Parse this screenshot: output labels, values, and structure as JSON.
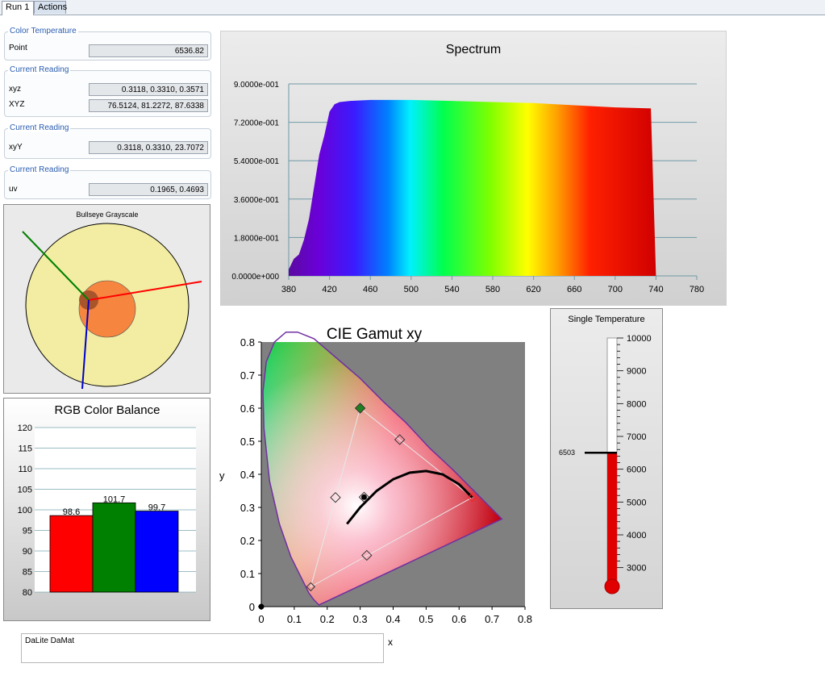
{
  "tabs": [
    {
      "label": "Run 1"
    },
    {
      "label": "Actions"
    }
  ],
  "groups": {
    "color_temperature": {
      "title": "Color Temperature",
      "rows": [
        {
          "label": "Point",
          "value": "6536.82"
        }
      ]
    },
    "reading1": {
      "title": "Current Reading",
      "rows": [
        {
          "label": "xyz",
          "value": "0.3118, 0.3310, 0.3571"
        },
        {
          "label": "XYZ",
          "value": "76.5124, 81.2272, 87.6338"
        }
      ]
    },
    "reading2": {
      "title": "Current Reading",
      "rows": [
        {
          "label": "xyY",
          "value": "0.3118, 0.3310, 23.7072"
        }
      ]
    },
    "reading3": {
      "title": "Current Reading",
      "rows": [
        {
          "label": "uv",
          "value": "0.1965, 0.4693"
        }
      ]
    }
  },
  "bullseye": {
    "title": "Bullseye Grayscale",
    "colors": {
      "outer": "#f2eda2",
      "inner": "#f5853f",
      "center": "#a8552c",
      "red": "#ff0000",
      "green": "#008000",
      "blue": "#0000cc"
    }
  },
  "rgb_balance": {
    "title": "RGB Color Balance",
    "data_labels": [
      "98.6",
      "101.7",
      "99.7"
    ]
  },
  "spectrum": {
    "title": "Spectrum",
    "y_ticks": [
      "0.0000e+000",
      "1.8000e-001",
      "3.6000e-001",
      "5.4000e-001",
      "7.2000e-001",
      "9.0000e-001"
    ],
    "x_ticks": [
      "380",
      "420",
      "460",
      "500",
      "540",
      "580",
      "620",
      "660",
      "700",
      "740",
      "780"
    ]
  },
  "gamut": {
    "title": "CIE Gamut xy",
    "xlabel": "x",
    "ylabel": "y",
    "x_ticks": [
      "0",
      "0.1",
      "0.2",
      "0.3",
      "0.4",
      "0.5",
      "0.6",
      "0.7",
      "0.8"
    ],
    "y_ticks": [
      "0",
      "0.1",
      "0.2",
      "0.3",
      "0.4",
      "0.5",
      "0.6",
      "0.7",
      "0.8"
    ]
  },
  "thermometer": {
    "title": "Single Temperature",
    "ticks": [
      "10000",
      "9000",
      "8000",
      "7000",
      "6000",
      "5000",
      "4000",
      "3000"
    ],
    "marker_label": "6503"
  },
  "note": {
    "text": "DaLite DaMat"
  },
  "chart_data": [
    {
      "type": "bar",
      "title": "RGB Color Balance",
      "categories": [
        "R",
        "G",
        "B"
      ],
      "values": [
        98.6,
        101.7,
        99.7
      ],
      "ylim": [
        80,
        120
      ],
      "y_ticks": [
        80,
        85,
        90,
        95,
        100,
        105,
        110,
        115,
        120
      ],
      "colors": [
        "#ff0000",
        "#008000",
        "#0000ff"
      ]
    },
    {
      "type": "area",
      "title": "Spectrum",
      "x": [
        380,
        385,
        390,
        395,
        400,
        405,
        410,
        415,
        420,
        425,
        430,
        440,
        460,
        500,
        540,
        580,
        620,
        660,
        700,
        735,
        740
      ],
      "values": [
        0.03,
        0.08,
        0.1,
        0.17,
        0.27,
        0.42,
        0.57,
        0.66,
        0.77,
        0.805,
        0.815,
        0.82,
        0.825,
        0.825,
        0.82,
        0.815,
        0.81,
        0.8,
        0.79,
        0.785,
        0.0
      ],
      "xlim": [
        380,
        780
      ],
      "ylim": [
        0,
        0.9
      ]
    },
    {
      "type": "scatter",
      "title": "CIE Gamut xy",
      "xlabel": "x",
      "ylabel": "y",
      "xlim": [
        0,
        0.8
      ],
      "ylim": [
        0,
        0.8
      ],
      "series": [
        {
          "name": "",
          "values": [
            [
              0.64,
              0.33
            ],
            [
              0.3,
              0.6
            ],
            [
              0.15,
              0.06
            ]
          ]
        },
        {
          "name": "",
          "values": [
            [
              0.32,
              0.155
            ],
            [
              0.225,
              0.33
            ],
            [
              0.42,
              0.505
            ]
          ]
        },
        {
          "name": "",
          "values": [
            [
              0.3118,
              0.331
            ]
          ]
        },
        {
          "name": "",
          "values": [
            [
              0.26,
              0.25
            ],
            [
              0.3,
              0.3
            ],
            [
              0.35,
              0.35
            ],
            [
              0.4,
              0.385
            ],
            [
              0.45,
              0.405
            ],
            [
              0.5,
              0.41
            ],
            [
              0.55,
              0.4
            ],
            [
              0.6,
              0.37
            ],
            [
              0.64,
              0.33
            ]
          ]
        }
      ]
    },
    {
      "type": "bar",
      "title": "Single Temperature",
      "categories": [
        "6503"
      ],
      "values": [
        6503
      ],
      "ylim": [
        2500,
        10000
      ]
    }
  ]
}
